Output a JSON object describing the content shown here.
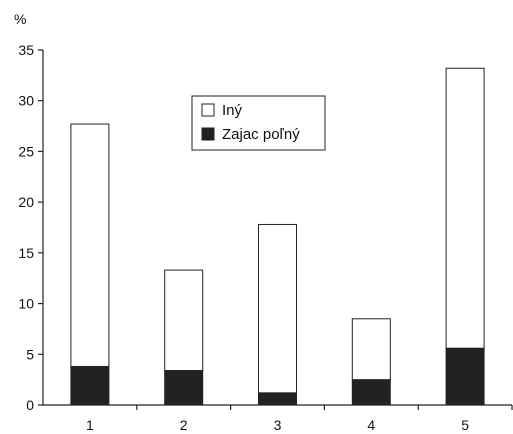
{
  "chart_data": {
    "type": "bar",
    "stacked": true,
    "categories": [
      "1",
      "2",
      "3",
      "4",
      "5"
    ],
    "series": [
      {
        "name": "Zajac poľný",
        "values": [
          3.8,
          3.4,
          1.2,
          2.5,
          5.6
        ],
        "color": "#222222"
      },
      {
        "name": "Iný",
        "values": [
          23.9,
          9.9,
          16.6,
          6.0,
          27.6
        ],
        "color": "#ffffff"
      }
    ],
    "title": "",
    "xlabel": "",
    "ylabel": "%",
    "ylim": [
      0,
      35
    ],
    "yticks": [
      0,
      5,
      10,
      15,
      20,
      25,
      30,
      35
    ],
    "grid": false,
    "legend_position": "top-center"
  }
}
